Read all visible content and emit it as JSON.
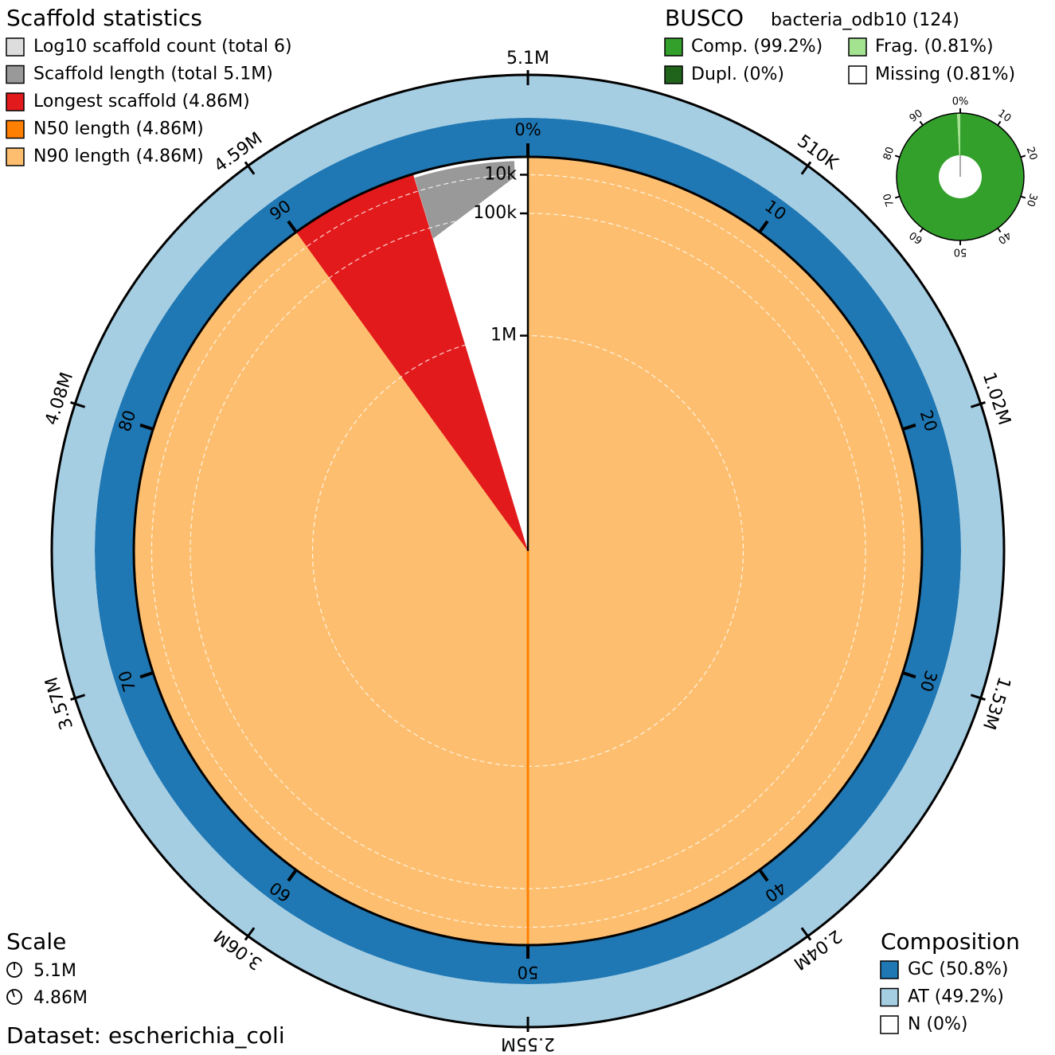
{
  "chart_data": {
    "type": "snail",
    "title": "Scaffold statistics",
    "legend": [
      {
        "name": "Log10 scaffold count (total 6)",
        "color": "#dddddd"
      },
      {
        "name": "Scaffold length (total 5.1M)",
        "color": "#999999",
        "value": 5100000
      },
      {
        "name": "Longest scaffold (4.86M)",
        "color": "#e31a1c",
        "value": 4860000
      },
      {
        "name": "N50 length (4.86M)",
        "color": "#ff7f00",
        "value": 4860000
      },
      {
        "name": "N90 length (4.86M)",
        "color": "#fdbf6f",
        "value": 4860000
      }
    ],
    "length_ticks": [
      {
        "value": 5100000,
        "label": "5.1M"
      },
      {
        "value": 510000,
        "label": "510K"
      },
      {
        "value": 1020000,
        "label": "1.02M"
      },
      {
        "value": 1530000,
        "label": "1.53M"
      },
      {
        "value": 2040000,
        "label": "2.04M"
      },
      {
        "value": 2550000,
        "label": "2.55M"
      },
      {
        "value": 3060000,
        "label": "3.06M"
      },
      {
        "value": 3570000,
        "label": "3.57M"
      },
      {
        "value": 4080000,
        "label": "4.08M"
      },
      {
        "value": 4590000,
        "label": "4.59M"
      }
    ],
    "percent_ticks": [
      {
        "value": 0,
        "label": "0%"
      },
      10,
      20,
      30,
      40,
      50,
      60,
      70,
      80,
      90
    ],
    "rscale": "sqrt",
    "rlim": [
      0,
      4860000
    ],
    "rticks": [
      {
        "value": 10000,
        "label": "10k"
      },
      {
        "value": 100000,
        "label": "100k"
      },
      {
        "value": 1000000,
        "label": "1M"
      }
    ],
    "busco": {
      "title": "BUSCO",
      "lineage": "bacteria_odb10 (124)",
      "series": [
        {
          "name": "Comp. (99.2%)",
          "color": "#33a02c",
          "value": 99.2
        },
        {
          "name": "Dupl. (0%)",
          "color": "#20641c",
          "value": 0
        },
        {
          "name": "Frag. (0.81%)",
          "color": "#a3e28f",
          "value": 0.81
        },
        {
          "name": "Missing (0.81%)",
          "color": "#ffffff",
          "value": 0.81
        }
      ],
      "ticks": [
        {
          "value": 0,
          "label": "0%"
        },
        10,
        20,
        30,
        40,
        50,
        60,
        70,
        80,
        90
      ]
    },
    "composition": {
      "title": "Composition",
      "series": [
        {
          "name": "GC (50.8%)",
          "color": "#1f78b4",
          "value": 50.8
        },
        {
          "name": "AT (49.2%)",
          "color": "#a6cee3",
          "value": 49.2
        },
        {
          "name": "N (0%)",
          "color": "#ffffff",
          "value": 0
        }
      ]
    },
    "scale": {
      "title": "Scale",
      "items": [
        "5.1M",
        "4.86M"
      ]
    },
    "dataset": "Dataset: escherichia_coli"
  }
}
